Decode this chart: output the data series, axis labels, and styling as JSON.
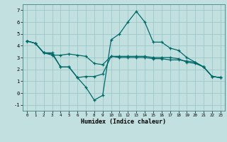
{
  "xlabel": "Humidex (Indice chaleur)",
  "bg_color": "#c2e0e0",
  "grid_color": "#9dc8c8",
  "line_color": "#006868",
  "xlim": [
    -0.5,
    23.5
  ],
  "ylim": [
    -1.5,
    7.5
  ],
  "xticks": [
    0,
    1,
    2,
    3,
    4,
    5,
    6,
    7,
    8,
    9,
    10,
    11,
    12,
    13,
    14,
    15,
    16,
    17,
    18,
    19,
    20,
    21,
    22,
    23
  ],
  "yticks": [
    -1,
    0,
    1,
    2,
    3,
    4,
    5,
    6,
    7
  ],
  "line1_x": [
    0,
    1,
    2,
    3,
    4,
    5,
    6,
    7,
    8,
    9,
    10,
    11,
    12,
    13,
    14,
    15,
    16,
    17,
    18,
    19,
    20,
    21,
    22,
    23
  ],
  "line1_y": [
    4.4,
    4.2,
    3.4,
    3.2,
    3.2,
    3.3,
    3.2,
    3.1,
    2.5,
    2.4,
    3.1,
    3.1,
    3.1,
    3.1,
    3.1,
    3.0,
    3.0,
    3.0,
    2.9,
    2.6,
    2.5,
    2.2,
    1.4,
    1.3
  ],
  "line2_x": [
    0,
    1,
    2,
    3,
    4,
    5,
    6,
    7,
    8,
    9,
    10,
    11,
    12,
    13,
    14,
    15,
    16,
    17,
    18,
    19,
    20,
    21,
    22,
    23
  ],
  "line2_y": [
    4.4,
    4.2,
    3.4,
    3.3,
    2.2,
    2.2,
    1.3,
    1.4,
    1.4,
    1.6,
    3.1,
    3.0,
    3.0,
    3.0,
    3.0,
    2.9,
    2.9,
    2.8,
    2.8,
    2.7,
    2.6,
    2.2,
    1.4,
    1.3
  ],
  "line3_x": [
    0,
    1,
    2,
    3,
    4,
    5,
    6,
    7,
    8,
    9,
    10,
    11,
    12,
    13,
    14,
    15,
    16,
    17,
    18,
    19,
    20,
    21,
    22,
    23
  ],
  "line3_y": [
    4.4,
    4.2,
    3.4,
    3.4,
    2.2,
    2.2,
    1.3,
    0.5,
    -0.6,
    -0.2,
    4.5,
    5.0,
    6.0,
    6.9,
    6.0,
    4.3,
    4.3,
    3.8,
    3.6,
    3.0,
    2.6,
    2.2,
    1.4,
    1.3
  ]
}
